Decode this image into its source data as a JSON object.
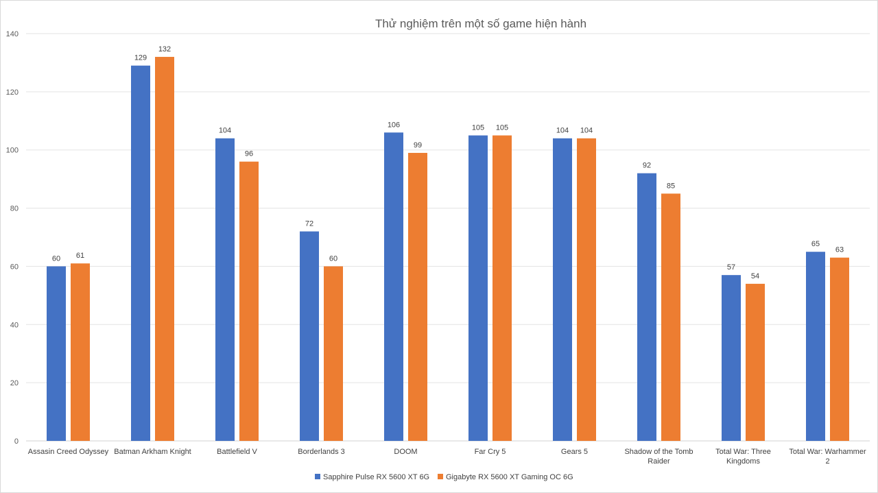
{
  "chart_data": {
    "type": "bar",
    "title": "Thử nghiệm trên một số game hiện hành",
    "xlabel": "",
    "ylabel": "",
    "ylim": [
      0,
      140
    ],
    "yticks": [
      0,
      20,
      40,
      60,
      80,
      100,
      120,
      140
    ],
    "grid": true,
    "legend_position": "bottom",
    "categories": [
      [
        "Assasin Creed Odyssey"
      ],
      [
        "Batman Arkham Knight"
      ],
      [
        "Battlefield V"
      ],
      [
        "Borderlands 3"
      ],
      [
        "DOOM"
      ],
      [
        "Far Cry 5"
      ],
      [
        "Gears 5"
      ],
      [
        "Shadow of the Tomb",
        "Raider"
      ],
      [
        "Total War: Three",
        "Kingdoms"
      ],
      [
        "Total War: Warhammer",
        "2"
      ]
    ],
    "series": [
      {
        "name": "Sapphire Pulse RX 5600 XT 6G",
        "color": "#4472c4",
        "values": [
          60,
          129,
          104,
          72,
          106,
          105,
          104,
          92,
          57,
          65
        ]
      },
      {
        "name": "Gigabyte RX 5600 XT Gaming OC 6G",
        "color": "#ed7d31",
        "values": [
          61,
          132,
          96,
          60,
          99,
          105,
          104,
          85,
          54,
          63
        ]
      }
    ]
  }
}
